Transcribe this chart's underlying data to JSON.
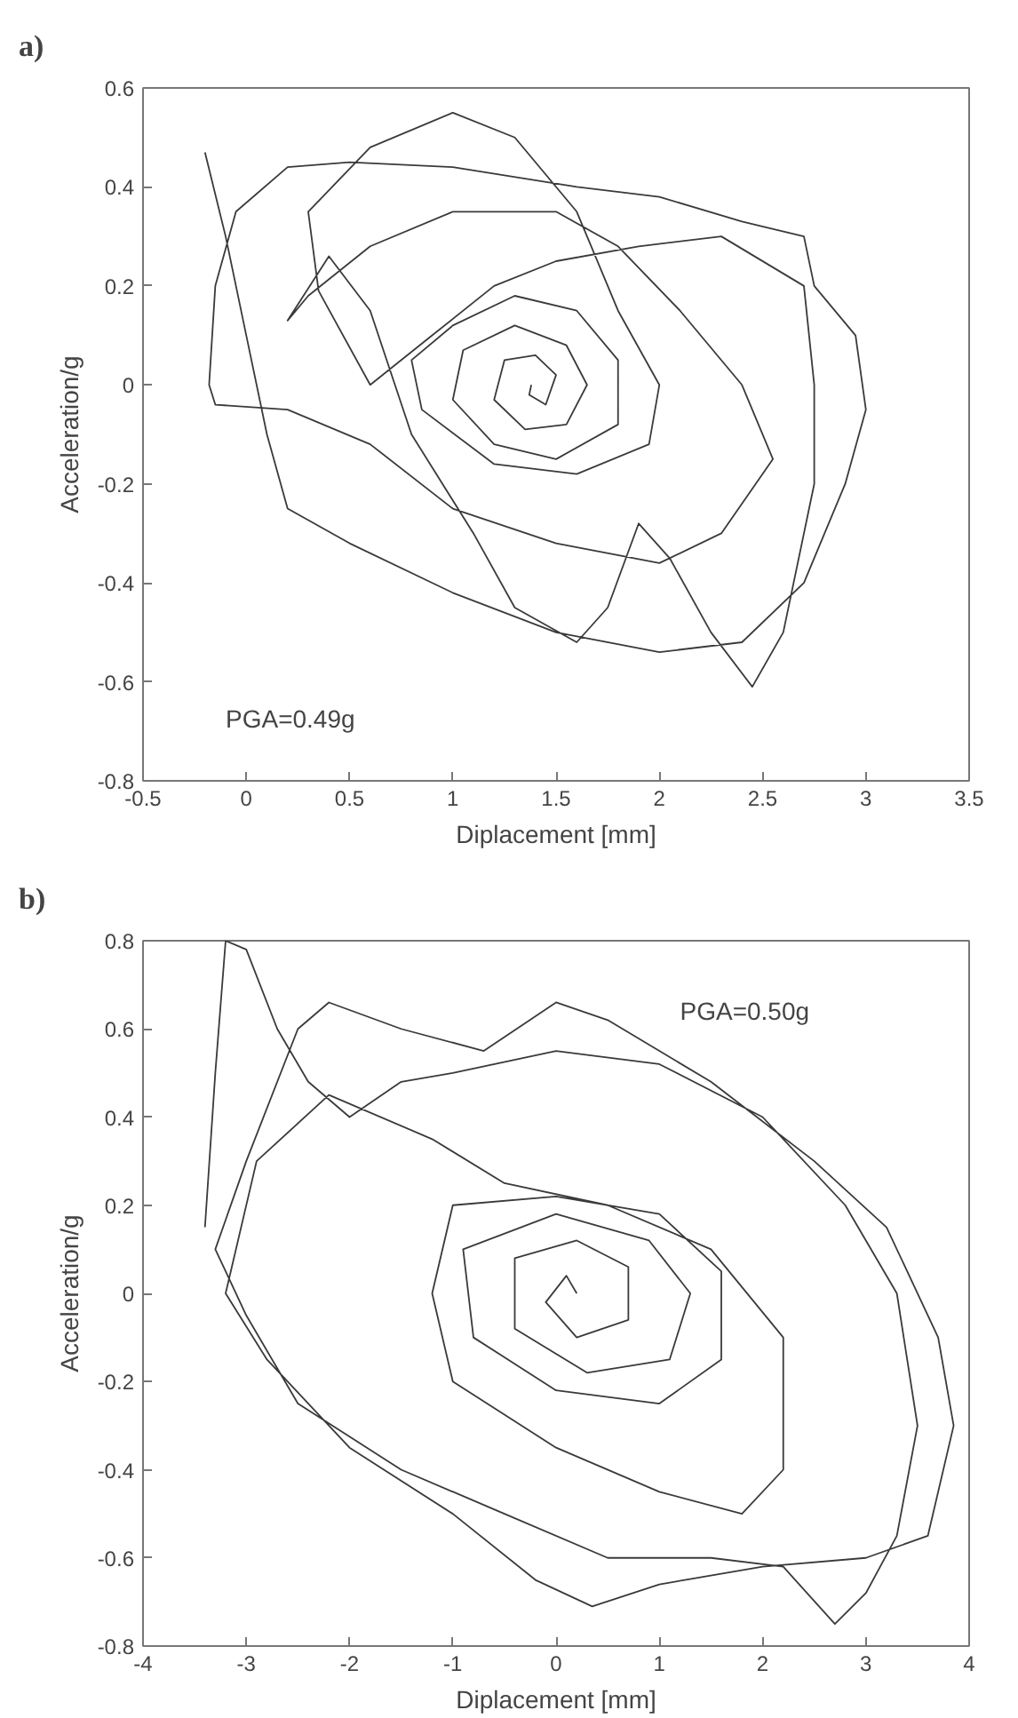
{
  "chart_data": [
    {
      "type": "line",
      "title": "a)",
      "xlabel": "Diplacement [mm]",
      "ylabel": "Acceleration/g",
      "annotations": [
        "PGA=0.49g"
      ],
      "xlim": [
        -0.5,
        3.5
      ],
      "ylim": [
        -0.8,
        0.6
      ],
      "xticks": [
        -0.5,
        0,
        0.5,
        1,
        1.5,
        2,
        2.5,
        3,
        3.5
      ],
      "yticks": [
        -0.8,
        -0.6,
        -0.4,
        -0.2,
        0,
        0.2,
        0.4,
        0.6
      ],
      "grid": false,
      "marker": "none",
      "line_style": "solid",
      "series": [
        {
          "color": "#3a3a3a",
          "x": [
            -0.2,
            -0.1,
            0.0,
            0.1,
            0.2,
            0.5,
            1.0,
            1.5,
            2.0,
            2.4,
            2.7,
            2.9,
            3.0,
            2.95,
            2.75,
            2.7,
            2.4,
            2.0,
            1.6,
            1.0,
            0.5,
            0.2,
            -0.05,
            -0.15,
            -0.18,
            -0.15,
            0.2,
            0.6,
            1.0,
            1.5,
            2.0,
            2.3,
            2.55,
            2.4,
            2.1,
            1.8,
            1.5,
            1.0,
            0.6,
            0.3,
            0.2,
            0.4,
            0.6,
            0.8,
            1.1,
            1.3,
            1.6,
            1.75,
            1.9,
            2.05,
            2.25,
            2.45,
            2.6,
            2.75,
            2.75,
            2.7,
            2.3,
            1.9,
            1.5,
            1.2,
            0.9,
            0.6,
            0.35,
            0.3,
            0.6,
            1.0,
            1.3,
            1.6,
            1.8,
            2.0,
            1.95,
            1.6,
            1.2,
            0.85,
            0.8,
            1.0,
            1.3,
            1.6,
            1.8,
            1.8,
            1.5,
            1.2,
            1.0,
            1.05,
            1.3,
            1.55,
            1.65,
            1.55,
            1.35,
            1.2,
            1.25,
            1.4,
            1.5,
            1.45,
            1.37,
            1.38
          ],
          "values": [
            0.47,
            0.3,
            0.1,
            -0.1,
            -0.25,
            -0.32,
            -0.42,
            -0.5,
            -0.54,
            -0.52,
            -0.4,
            -0.2,
            -0.05,
            0.1,
            0.2,
            0.3,
            0.33,
            0.38,
            0.4,
            0.44,
            0.45,
            0.44,
            0.35,
            0.2,
            0.0,
            -0.04,
            -0.05,
            -0.12,
            -0.25,
            -0.32,
            -0.36,
            -0.3,
            -0.15,
            0.0,
            0.15,
            0.28,
            0.35,
            0.35,
            0.28,
            0.18,
            0.13,
            0.26,
            0.15,
            -0.1,
            -0.3,
            -0.45,
            -0.52,
            -0.45,
            -0.28,
            -0.35,
            -0.5,
            -0.61,
            -0.5,
            -0.2,
            0.0,
            0.2,
            0.3,
            0.28,
            0.25,
            0.2,
            0.1,
            0.0,
            0.19,
            0.35,
            0.48,
            0.55,
            0.5,
            0.35,
            0.15,
            0.0,
            -0.12,
            -0.18,
            -0.16,
            -0.05,
            0.05,
            0.12,
            0.18,
            0.15,
            0.05,
            -0.08,
            -0.15,
            -0.12,
            -0.03,
            0.07,
            0.12,
            0.08,
            0.0,
            -0.08,
            -0.09,
            -0.03,
            0.05,
            0.06,
            0.02,
            -0.04,
            -0.02,
            0.0
          ]
        }
      ]
    },
    {
      "type": "line",
      "title": "b)",
      "xlabel": "Diplacement [mm]",
      "ylabel": "Acceleration/g",
      "annotations": [
        "PGA=0.50g"
      ],
      "xlim": [
        -4,
        4
      ],
      "ylim": [
        -0.8,
        0.8
      ],
      "xticks": [
        -4,
        -3,
        -2,
        -1,
        0,
        1,
        2,
        3,
        4
      ],
      "yticks": [
        -0.8,
        -0.6,
        -0.4,
        -0.2,
        0,
        0.2,
        0.4,
        0.6,
        0.8
      ],
      "grid": false,
      "marker": "none",
      "line_style": "solid",
      "series": [
        {
          "color": "#3a3a3a",
          "x": [
            -3.4,
            -3.3,
            -3.2,
            -3.0,
            -2.7,
            -2.4,
            -2.0,
            -1.5,
            -1.0,
            0,
            1.0,
            2.0,
            2.8,
            3.3,
            3.5,
            3.3,
            3.0,
            2.7,
            2.2,
            1.5,
            0.5,
            -0.5,
            -1.5,
            -2.5,
            -3.0,
            -3.3,
            -3.0,
            -2.5,
            -2.2,
            -1.5,
            -0.7,
            0,
            0.5,
            1.5,
            2.5,
            3.2,
            3.7,
            3.85,
            3.6,
            3.0,
            2.0,
            1.0,
            0.35,
            -0.2,
            -1.0,
            -2.0,
            -2.8,
            -3.2,
            -2.9,
            -2.2,
            -1.2,
            -0.5,
            0.5,
            1.5,
            2.2,
            2.2,
            1.8,
            1.0,
            0,
            -1.0,
            -1.2,
            -1.0,
            0,
            1.0,
            1.6,
            1.6,
            1.0,
            0,
            -0.8,
            -0.9,
            0,
            0.9,
            1.3,
            1.1,
            0.3,
            -0.4,
            -0.4,
            0.2,
            0.7,
            0.7,
            0.2,
            -0.1,
            0.1,
            0.2
          ],
          "values": [
            0.15,
            0.5,
            0.8,
            0.78,
            0.6,
            0.48,
            0.4,
            0.48,
            0.5,
            0.55,
            0.52,
            0.4,
            0.2,
            0.0,
            -0.3,
            -0.55,
            -0.68,
            -0.75,
            -0.62,
            -0.6,
            -0.6,
            -0.5,
            -0.4,
            -0.25,
            -0.05,
            0.1,
            0.3,
            0.6,
            0.66,
            0.6,
            0.55,
            0.66,
            0.62,
            0.48,
            0.3,
            0.15,
            -0.1,
            -0.3,
            -0.55,
            -0.6,
            -0.62,
            -0.66,
            -0.71,
            -0.65,
            -0.5,
            -0.35,
            -0.15,
            0.0,
            0.3,
            0.45,
            0.35,
            0.25,
            0.2,
            0.1,
            -0.1,
            -0.4,
            -0.5,
            -0.45,
            -0.35,
            -0.2,
            0.0,
            0.2,
            0.22,
            0.18,
            0.05,
            -0.15,
            -0.25,
            -0.22,
            -0.1,
            0.1,
            0.18,
            0.12,
            0.0,
            -0.15,
            -0.18,
            -0.08,
            0.08,
            0.12,
            0.06,
            -0.06,
            -0.1,
            -0.02,
            0.04,
            0.0
          ]
        }
      ]
    }
  ]
}
